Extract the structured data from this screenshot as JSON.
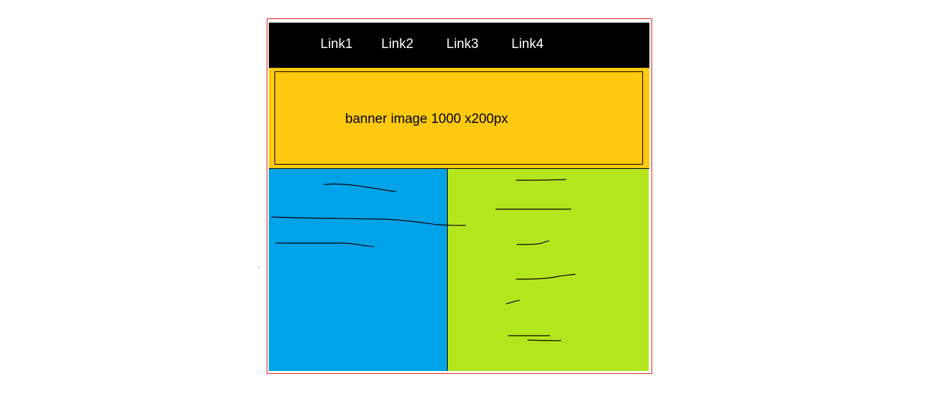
{
  "nav": {
    "links": [
      "Link1",
      "Link2",
      "Link3",
      "Link4"
    ]
  },
  "banner": {
    "label": "banner image 1000 x200px"
  },
  "colors": {
    "frame_border": "#e02020",
    "nav_background": "#000000",
    "nav_text": "#ffffff",
    "banner_background": "#ffc90e",
    "left_column": "#00a2e8",
    "right_column": "#b5e61d"
  }
}
